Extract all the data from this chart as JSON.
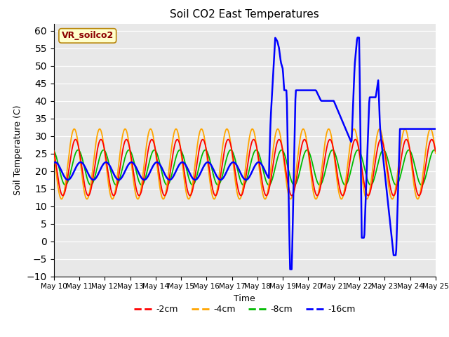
{
  "title": "Soil CO2 East Temperatures",
  "xlabel": "Time",
  "ylabel": "Soil Temperature (C)",
  "ylim": [
    -10,
    62
  ],
  "yticks": [
    -10,
    -5,
    0,
    5,
    10,
    15,
    20,
    25,
    30,
    35,
    40,
    45,
    50,
    55,
    60
  ],
  "xlim": [
    0,
    15
  ],
  "bg_color": "#e8e8e8",
  "legend_label": "VR_soilco2",
  "series_colors": {
    "-2cm": "#ff0000",
    "-4cm": "#ffa500",
    "-8cm": "#00bb00",
    "-16cm": "#0000ff"
  },
  "x_tick_labels": [
    "May 10",
    "May 11",
    "May 12",
    "May 13",
    "May 14",
    "May 15",
    "May 16",
    "May 17",
    "May 18",
    "May 19",
    "May 20",
    "May 21",
    "May 22",
    "May 23",
    "May 24",
    "May 25"
  ],
  "x_tick_positions": [
    0,
    1,
    2,
    3,
    4,
    5,
    6,
    7,
    8,
    9,
    10,
    11,
    12,
    13,
    14,
    15
  ]
}
